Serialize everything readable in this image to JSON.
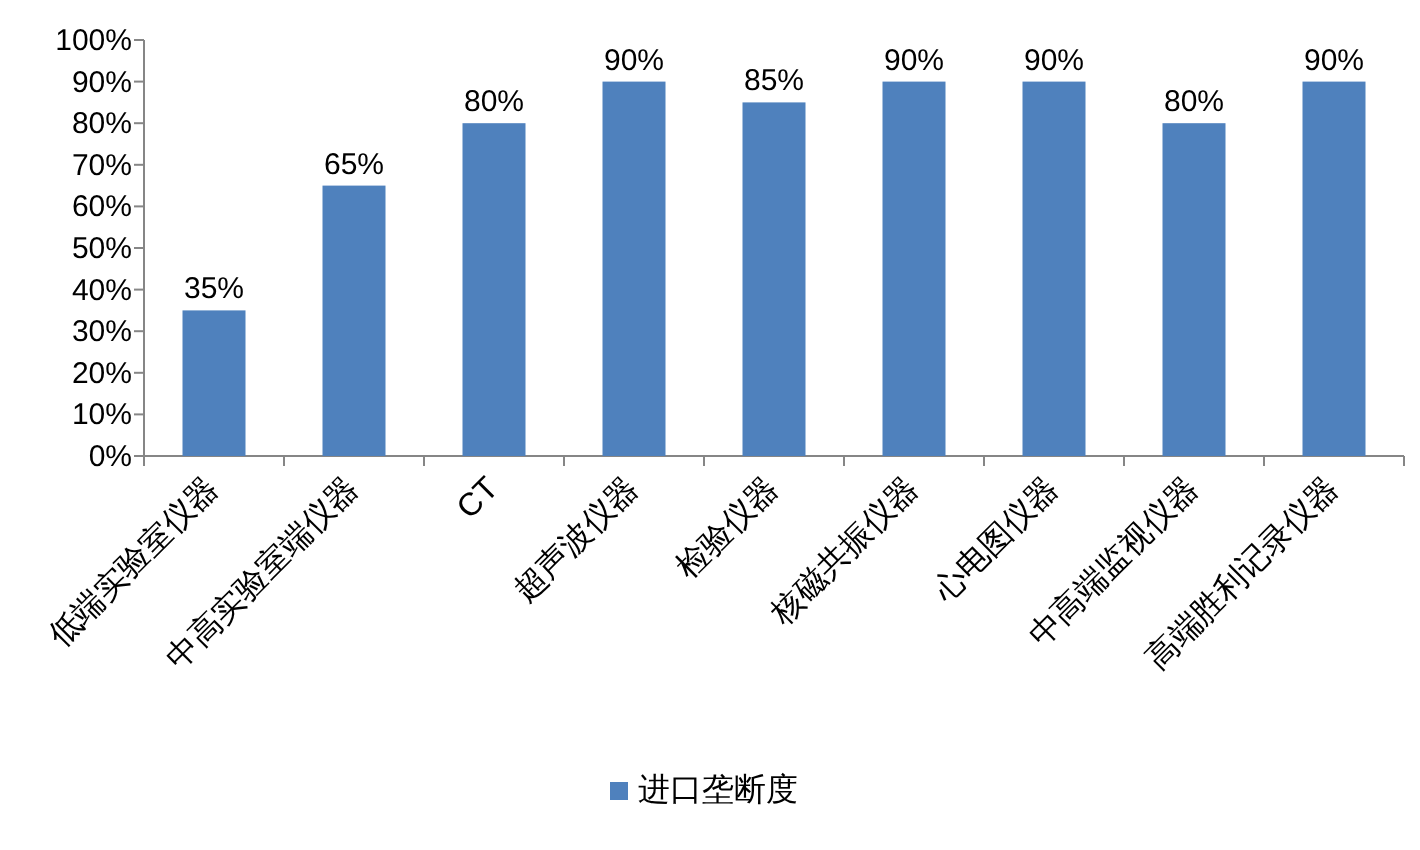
{
  "chart_data": {
    "type": "bar",
    "categories": [
      "低端实验室仪器",
      "中高实验室端仪器",
      "CT",
      "超声波仪器",
      "检验仪器",
      "核磁共振仪器",
      "心电图仪器",
      "中高端监视仪器",
      "高端胜利记录仪器"
    ],
    "series": [
      {
        "name": "进口垄断度",
        "color": "#4f81bd",
        "values": [
          35,
          65,
          80,
          90,
          85,
          90,
          90,
          80,
          90
        ],
        "value_labels": [
          "35%",
          "65%",
          "80%",
          "90%",
          "85%",
          "90%",
          "90%",
          "80%",
          "90%"
        ]
      }
    ],
    "ylim": [
      0,
      100
    ],
    "yticks": [
      {
        "value": 0,
        "label": "0%"
      },
      {
        "value": 10,
        "label": "10%"
      },
      {
        "value": 20,
        "label": "20%"
      },
      {
        "value": 30,
        "label": "30%"
      },
      {
        "value": 40,
        "label": "40%"
      },
      {
        "value": 50,
        "label": "50%"
      },
      {
        "value": 60,
        "label": "60%"
      },
      {
        "value": 70,
        "label": "70%"
      },
      {
        "value": 80,
        "label": "80%"
      },
      {
        "value": 90,
        "label": "90%"
      },
      {
        "value": 100,
        "label": "100%"
      }
    ],
    "legend": "bottom"
  }
}
